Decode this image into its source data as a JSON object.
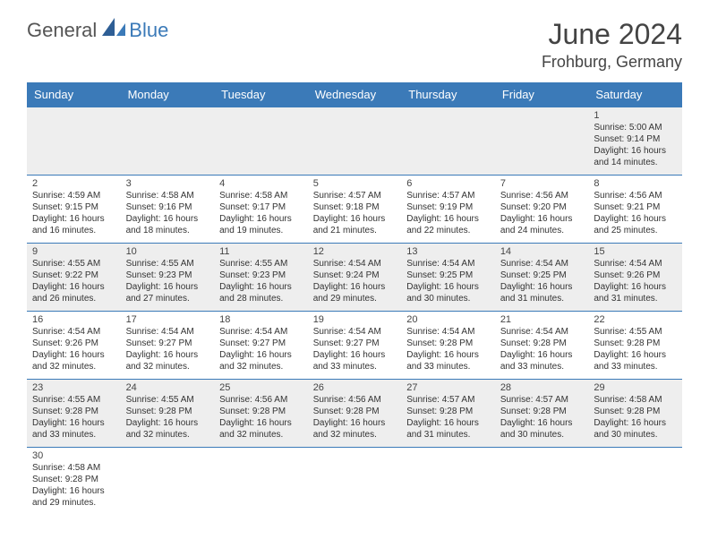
{
  "brand": {
    "part1": "General",
    "part2": "Blue"
  },
  "title": "June 2024",
  "location": "Frohburg, Germany",
  "colors": {
    "header_bg": "#3b7ab8",
    "header_text": "#ffffff",
    "odd_row_bg": "#eeeeee",
    "even_row_bg": "#ffffff",
    "border": "#3b7ab8",
    "text": "#333333"
  },
  "weekdays": [
    "Sunday",
    "Monday",
    "Tuesday",
    "Wednesday",
    "Thursday",
    "Friday",
    "Saturday"
  ],
  "weeks": [
    [
      null,
      null,
      null,
      null,
      null,
      null,
      {
        "day": "1",
        "sunrise": "Sunrise: 5:00 AM",
        "sunset": "Sunset: 9:14 PM",
        "daylight1": "Daylight: 16 hours",
        "daylight2": "and 14 minutes."
      }
    ],
    [
      {
        "day": "2",
        "sunrise": "Sunrise: 4:59 AM",
        "sunset": "Sunset: 9:15 PM",
        "daylight1": "Daylight: 16 hours",
        "daylight2": "and 16 minutes."
      },
      {
        "day": "3",
        "sunrise": "Sunrise: 4:58 AM",
        "sunset": "Sunset: 9:16 PM",
        "daylight1": "Daylight: 16 hours",
        "daylight2": "and 18 minutes."
      },
      {
        "day": "4",
        "sunrise": "Sunrise: 4:58 AM",
        "sunset": "Sunset: 9:17 PM",
        "daylight1": "Daylight: 16 hours",
        "daylight2": "and 19 minutes."
      },
      {
        "day": "5",
        "sunrise": "Sunrise: 4:57 AM",
        "sunset": "Sunset: 9:18 PM",
        "daylight1": "Daylight: 16 hours",
        "daylight2": "and 21 minutes."
      },
      {
        "day": "6",
        "sunrise": "Sunrise: 4:57 AM",
        "sunset": "Sunset: 9:19 PM",
        "daylight1": "Daylight: 16 hours",
        "daylight2": "and 22 minutes."
      },
      {
        "day": "7",
        "sunrise": "Sunrise: 4:56 AM",
        "sunset": "Sunset: 9:20 PM",
        "daylight1": "Daylight: 16 hours",
        "daylight2": "and 24 minutes."
      },
      {
        "day": "8",
        "sunrise": "Sunrise: 4:56 AM",
        "sunset": "Sunset: 9:21 PM",
        "daylight1": "Daylight: 16 hours",
        "daylight2": "and 25 minutes."
      }
    ],
    [
      {
        "day": "9",
        "sunrise": "Sunrise: 4:55 AM",
        "sunset": "Sunset: 9:22 PM",
        "daylight1": "Daylight: 16 hours",
        "daylight2": "and 26 minutes."
      },
      {
        "day": "10",
        "sunrise": "Sunrise: 4:55 AM",
        "sunset": "Sunset: 9:23 PM",
        "daylight1": "Daylight: 16 hours",
        "daylight2": "and 27 minutes."
      },
      {
        "day": "11",
        "sunrise": "Sunrise: 4:55 AM",
        "sunset": "Sunset: 9:23 PM",
        "daylight1": "Daylight: 16 hours",
        "daylight2": "and 28 minutes."
      },
      {
        "day": "12",
        "sunrise": "Sunrise: 4:54 AM",
        "sunset": "Sunset: 9:24 PM",
        "daylight1": "Daylight: 16 hours",
        "daylight2": "and 29 minutes."
      },
      {
        "day": "13",
        "sunrise": "Sunrise: 4:54 AM",
        "sunset": "Sunset: 9:25 PM",
        "daylight1": "Daylight: 16 hours",
        "daylight2": "and 30 minutes."
      },
      {
        "day": "14",
        "sunrise": "Sunrise: 4:54 AM",
        "sunset": "Sunset: 9:25 PM",
        "daylight1": "Daylight: 16 hours",
        "daylight2": "and 31 minutes."
      },
      {
        "day": "15",
        "sunrise": "Sunrise: 4:54 AM",
        "sunset": "Sunset: 9:26 PM",
        "daylight1": "Daylight: 16 hours",
        "daylight2": "and 31 minutes."
      }
    ],
    [
      {
        "day": "16",
        "sunrise": "Sunrise: 4:54 AM",
        "sunset": "Sunset: 9:26 PM",
        "daylight1": "Daylight: 16 hours",
        "daylight2": "and 32 minutes."
      },
      {
        "day": "17",
        "sunrise": "Sunrise: 4:54 AM",
        "sunset": "Sunset: 9:27 PM",
        "daylight1": "Daylight: 16 hours",
        "daylight2": "and 32 minutes."
      },
      {
        "day": "18",
        "sunrise": "Sunrise: 4:54 AM",
        "sunset": "Sunset: 9:27 PM",
        "daylight1": "Daylight: 16 hours",
        "daylight2": "and 32 minutes."
      },
      {
        "day": "19",
        "sunrise": "Sunrise: 4:54 AM",
        "sunset": "Sunset: 9:27 PM",
        "daylight1": "Daylight: 16 hours",
        "daylight2": "and 33 minutes."
      },
      {
        "day": "20",
        "sunrise": "Sunrise: 4:54 AM",
        "sunset": "Sunset: 9:28 PM",
        "daylight1": "Daylight: 16 hours",
        "daylight2": "and 33 minutes."
      },
      {
        "day": "21",
        "sunrise": "Sunrise: 4:54 AM",
        "sunset": "Sunset: 9:28 PM",
        "daylight1": "Daylight: 16 hours",
        "daylight2": "and 33 minutes."
      },
      {
        "day": "22",
        "sunrise": "Sunrise: 4:55 AM",
        "sunset": "Sunset: 9:28 PM",
        "daylight1": "Daylight: 16 hours",
        "daylight2": "and 33 minutes."
      }
    ],
    [
      {
        "day": "23",
        "sunrise": "Sunrise: 4:55 AM",
        "sunset": "Sunset: 9:28 PM",
        "daylight1": "Daylight: 16 hours",
        "daylight2": "and 33 minutes."
      },
      {
        "day": "24",
        "sunrise": "Sunrise: 4:55 AM",
        "sunset": "Sunset: 9:28 PM",
        "daylight1": "Daylight: 16 hours",
        "daylight2": "and 32 minutes."
      },
      {
        "day": "25",
        "sunrise": "Sunrise: 4:56 AM",
        "sunset": "Sunset: 9:28 PM",
        "daylight1": "Daylight: 16 hours",
        "daylight2": "and 32 minutes."
      },
      {
        "day": "26",
        "sunrise": "Sunrise: 4:56 AM",
        "sunset": "Sunset: 9:28 PM",
        "daylight1": "Daylight: 16 hours",
        "daylight2": "and 32 minutes."
      },
      {
        "day": "27",
        "sunrise": "Sunrise: 4:57 AM",
        "sunset": "Sunset: 9:28 PM",
        "daylight1": "Daylight: 16 hours",
        "daylight2": "and 31 minutes."
      },
      {
        "day": "28",
        "sunrise": "Sunrise: 4:57 AM",
        "sunset": "Sunset: 9:28 PM",
        "daylight1": "Daylight: 16 hours",
        "daylight2": "and 30 minutes."
      },
      {
        "day": "29",
        "sunrise": "Sunrise: 4:58 AM",
        "sunset": "Sunset: 9:28 PM",
        "daylight1": "Daylight: 16 hours",
        "daylight2": "and 30 minutes."
      }
    ],
    [
      {
        "day": "30",
        "sunrise": "Sunrise: 4:58 AM",
        "sunset": "Sunset: 9:28 PM",
        "daylight1": "Daylight: 16 hours",
        "daylight2": "and 29 minutes."
      },
      null,
      null,
      null,
      null,
      null,
      null
    ]
  ]
}
